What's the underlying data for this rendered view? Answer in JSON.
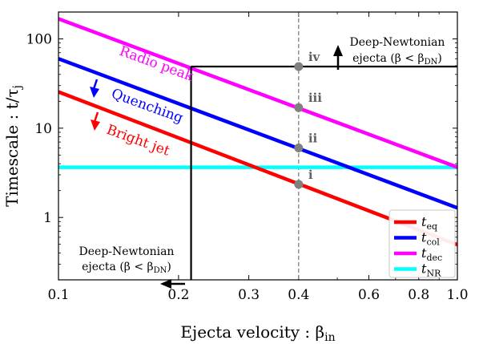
{
  "chart_data": {
    "type": "line",
    "xlabel_main": "Ejecta velocity : β",
    "xlabel_sub": "in",
    "ylabel_main": "Timescale : t/τ",
    "ylabel_sub": "j",
    "x_scale": "log",
    "y_scale": "log",
    "xlim": [
      0.1,
      1.0
    ],
    "ylim": [
      0.2,
      200
    ],
    "xticks": [
      0.1,
      0.2,
      0.3,
      0.4,
      0.6,
      0.8,
      1.0
    ],
    "xtick_labels": [
      "0.1",
      "0.2",
      "0.3",
      "0.4",
      "0.6",
      "0.8",
      "1.0"
    ],
    "yticks": [
      1,
      10,
      100
    ],
    "ytick_labels": [
      "1",
      "10",
      "100"
    ],
    "legend_position": "bottom-right",
    "series": [
      {
        "key": "eq",
        "name_main": "t",
        "name_sub": "eq",
        "color": "#ff0000",
        "points": [
          [
            0.1,
            25.5
          ],
          [
            1.0,
            0.495
          ]
        ]
      },
      {
        "key": "col",
        "name_main": "t",
        "name_sub": "col",
        "color": "#0000ff",
        "points": [
          [
            0.1,
            60
          ],
          [
            1.0,
            1.28
          ]
        ]
      },
      {
        "key": "dec",
        "name_main": "t",
        "name_sub": "dec",
        "color": "#ff00ff",
        "points": [
          [
            0.1,
            168
          ],
          [
            1.0,
            3.65
          ]
        ]
      },
      {
        "key": "nr",
        "name_main": "t",
        "name_sub": "NR",
        "color": "#00ffff",
        "points": [
          [
            0.1,
            3.65
          ],
          [
            1.0,
            3.65
          ]
        ]
      }
    ],
    "vline": {
      "x": 0.4,
      "color": "#808080",
      "style": "dashed"
    },
    "markers": [
      {
        "x": 0.4,
        "y": 2.35,
        "label": "i"
      },
      {
        "x": 0.4,
        "y": 6.0,
        "label": "ii"
      },
      {
        "x": 0.4,
        "y": 17.0,
        "label": "iii"
      },
      {
        "x": 0.4,
        "y": 49.0,
        "label": "iv"
      }
    ],
    "boundary": {
      "x": 0.215,
      "y": 49.0,
      "color": "#000000"
    },
    "annotations": {
      "radio_peak": "Radio peak",
      "quenching": "Quenching",
      "bright_jet": "Bright jet",
      "dn_top_line1": "Deep-Newtonian",
      "dn_top_line2": "ejecta (β < β",
      "dn_top_sub": "DN",
      "dn_top_close": ")",
      "dn_bottom_line1": "Deep-Newtonian",
      "dn_bottom_line2": "ejecta (β < β",
      "dn_bottom_sub": "DN",
      "dn_bottom_close": ")"
    }
  }
}
